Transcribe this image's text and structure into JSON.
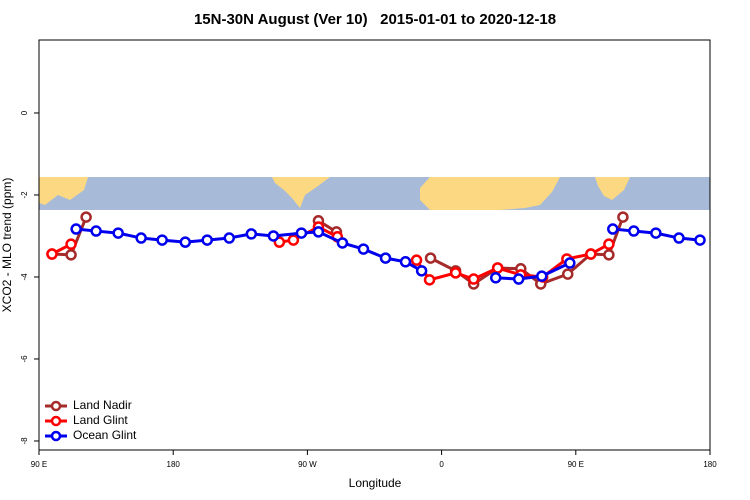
{
  "chart_data": {
    "type": "line",
    "title": "15N-30N August (Ver 10)   2015-01-01 to 2020-12-18",
    "x_label": "Longitude",
    "y_label": "XCO2 - MLO trend (ppm)",
    "xlim": [
      90,
      540
    ],
    "ylim": [
      -8.22,
      1.78
    ],
    "xticks": [
      {
        "value": 90,
        "label": "90 E"
      },
      180,
      {
        "value": 270,
        "label": "90 W"
      },
      {
        "value": 360,
        "label": "0"
      },
      {
        "value": 450,
        "label": "90 E"
      },
      {
        "value": 540,
        "label": "180"
      }
    ],
    "yticks": [
      0,
      -2,
      -4,
      -6,
      -8
    ],
    "legend": "bottom-left",
    "series": [
      {
        "name": "Land Nadir",
        "color": "#a52a2a",
        "x": [
          98.7,
          111.5,
          121.6,
          null,
          277.4,
          289.5,
          null,
          352.6,
          369.4,
          381.5,
          397.6,
          413.1,
          426.5,
          444.6,
          460.1,
          472.2,
          481.6
        ],
        "values": [
          -3.44,
          -3.46,
          -2.54,
          null,
          -2.63,
          -2.9,
          null,
          -3.54,
          -3.85,
          -4.17,
          -3.78,
          -3.8,
          -4.17,
          -3.93,
          -3.44,
          -3.46,
          -2.54
        ]
      },
      {
        "name": "Land Glint",
        "color": "#ff0000",
        "x": [
          98.7,
          111.5,
          null,
          251.2,
          260.6,
          277.4,
          290.1,
          null,
          343.2,
          351.9,
          369.4,
          381.5,
          397.6,
          413.1,
          427.8,
          444.0,
          460.1,
          472.2
        ],
        "values": [
          -3.44,
          -3.2,
          null,
          -3.15,
          -3.1,
          -2.78,
          -3.02,
          null,
          -3.59,
          -4.07,
          -3.9,
          -4.05,
          -3.78,
          -3.95,
          -4.0,
          -3.56,
          -3.44,
          -3.2
        ]
      },
      {
        "name": "Ocean Glint",
        "color": "#0000ee",
        "x": [
          114.9,
          128.3,
          143.1,
          158.5,
          172.6,
          188.1,
          202.8,
          217.6,
          232.4,
          247.2,
          266.0,
          277.4,
          293.5,
          307.6,
          322.4,
          335.8,
          346.6,
          null,
          396.3,
          411.7,
          427.2,
          446.0,
          null,
          474.8,
          488.9,
          503.7,
          519.2,
          533.3
        ],
        "values": [
          -2.83,
          -2.88,
          -2.93,
          -3.05,
          -3.1,
          -3.15,
          -3.1,
          -3.05,
          -2.95,
          -3.0,
          -2.93,
          -2.9,
          -3.17,
          -3.32,
          -3.54,
          -3.63,
          -3.85,
          null,
          -4.02,
          -4.05,
          -3.98,
          -3.66,
          null,
          -2.83,
          -2.88,
          -2.93,
          -3.05,
          -3.1
        ]
      }
    ]
  }
}
